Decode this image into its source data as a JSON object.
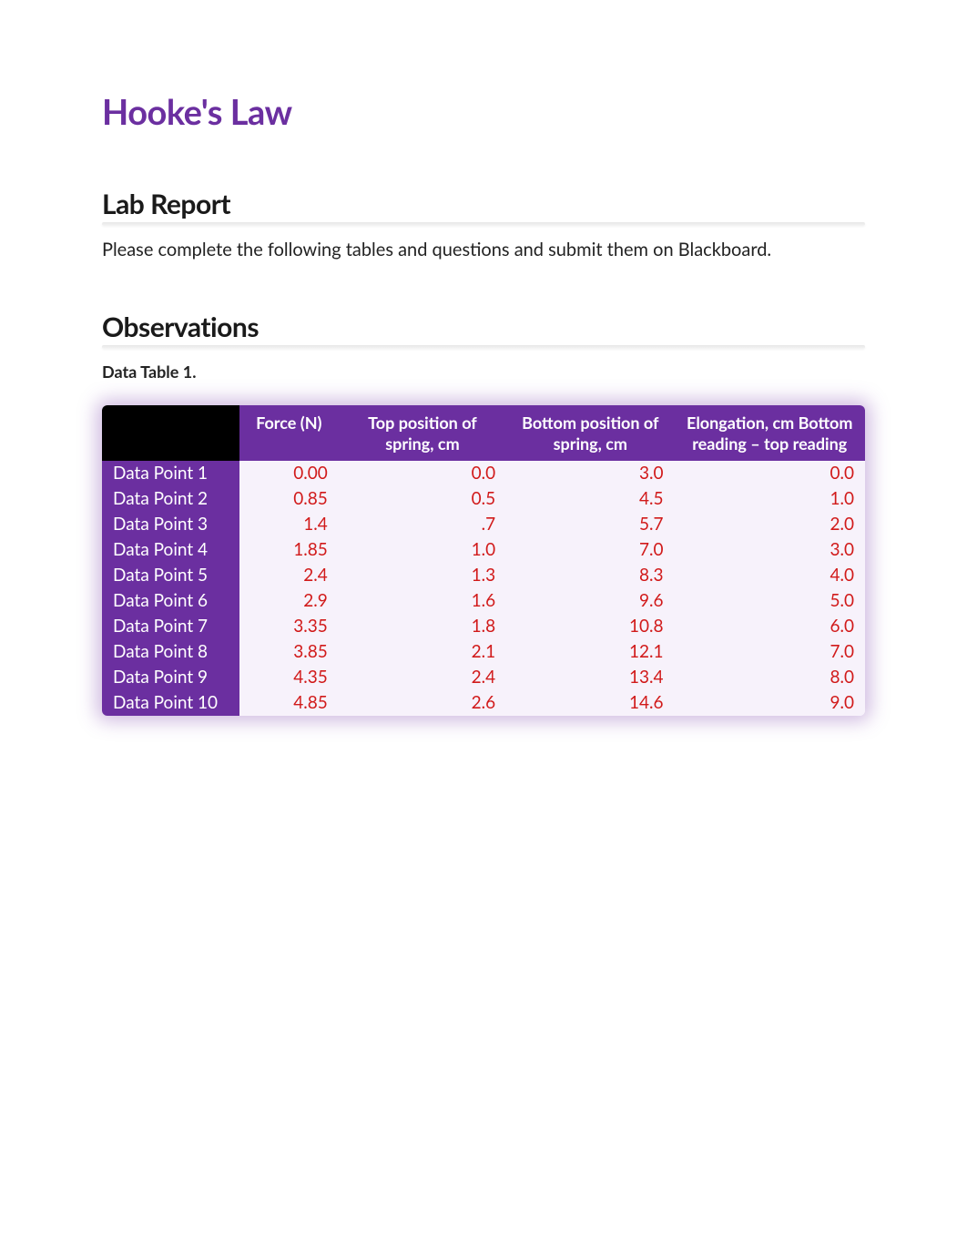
{
  "title": "Hooke's Law",
  "sections": {
    "lab_report": {
      "heading": "Lab Report",
      "text": "Please complete the following tables and questions and submit them on Blackboard."
    },
    "observations": {
      "heading": "Observations",
      "caption": "Data Table 1."
    }
  },
  "table": {
    "columns": [
      {
        "label": "",
        "width_pct": 18,
        "align": "left"
      },
      {
        "label": "Force (N)",
        "width_pct": 13,
        "align": "right"
      },
      {
        "label": "Top position of spring, cm",
        "width_pct": 22,
        "align": "right"
      },
      {
        "label": "Bottom position of spring, cm",
        "width_pct": 22,
        "align": "right"
      },
      {
        "label": "Elongation, cm Bottom reading – top reading",
        "width_pct": 25,
        "align": "right"
      }
    ],
    "rows": [
      {
        "label": "Data Point 1",
        "force": "0.00",
        "top": "0.0",
        "bottom": "3.0",
        "elong": "0.0"
      },
      {
        "label": "Data Point 2",
        "force": "0.85",
        "top": "0.5",
        "bottom": "4.5",
        "elong": "1.0"
      },
      {
        "label": "Data Point 3",
        "force": "1.4",
        "top": ".7",
        "bottom": "5.7",
        "elong": "2.0"
      },
      {
        "label": "Data Point 4",
        "force": "1.85",
        "top": "1.0",
        "bottom": "7.0",
        "elong": "3.0"
      },
      {
        "label": "Data Point 5",
        "force": "2.4",
        "top": "1.3",
        "bottom": "8.3",
        "elong": "4.0"
      },
      {
        "label": "Data Point 6",
        "force": "2.9",
        "top": "1.6",
        "bottom": "9.6",
        "elong": "5.0"
      },
      {
        "label": "Data Point 7",
        "force": "3.35",
        "top": "1.8",
        "bottom": "10.8",
        "elong": "6.0"
      },
      {
        "label": "Data Point 8",
        "force": "3.85",
        "top": "2.1",
        "bottom": "12.1",
        "elong": "7.0"
      },
      {
        "label": "Data Point 9",
        "force": "4.35",
        "top": "2.4",
        "bottom": "13.4",
        "elong": "8.0"
      },
      {
        "label": "Data Point 10",
        "force": "4.85",
        "top": "2.6",
        "bottom": "14.6",
        "elong": "9.0"
      }
    ],
    "colors": {
      "header_bg": "#6b2fa0",
      "header_first_bg": "#000000",
      "header_text": "#ffffff",
      "row_label_bg": "#6b2fa0",
      "row_label_text": "#ffffff",
      "cell_bg": "#f7f2fb",
      "cell_text": "#d11a1a",
      "glow": "rgba(120,60,170,0.35)"
    },
    "font_sizes": {
      "header": 18,
      "body": 19
    }
  },
  "typography": {
    "title_color": "#6b2fa0",
    "title_size": 38,
    "heading_size": 30,
    "body_size": 20,
    "caption_size": 18
  }
}
